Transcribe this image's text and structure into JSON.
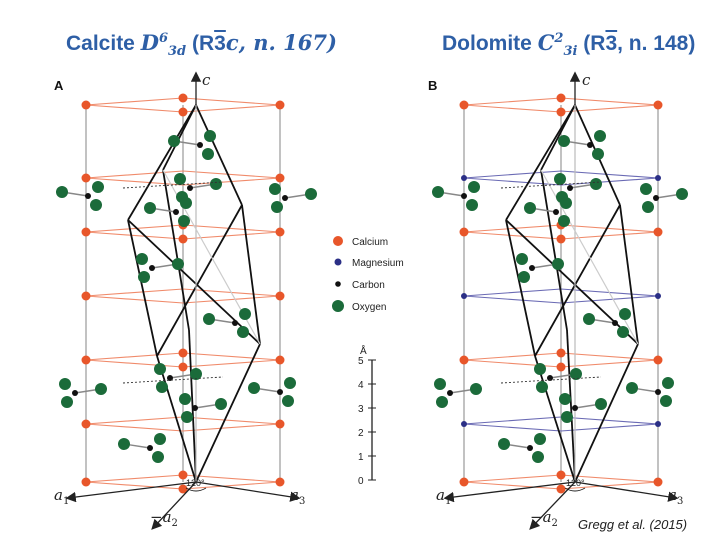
{
  "titles": {
    "calcite": {
      "mineral": "Calcite",
      "symbol": "D",
      "sup": "6",
      "sub": "3d",
      "group_pre": "(R",
      "group_bar": "3",
      "group_post": "c, n. 167)"
    },
    "dolomite": {
      "mineral": "Dolomite",
      "symbol": "C",
      "sup": "2",
      "sub": "3i",
      "group_pre": "(R",
      "group_bar": "3",
      "group_post": ", n. 148)"
    }
  },
  "panels": {
    "a": "A",
    "b": "B"
  },
  "axes": {
    "c": "c",
    "a": "a",
    "a1": "1",
    "a2": "2",
    "a3": "3",
    "minus": "−",
    "angle": "120°"
  },
  "legend": [
    {
      "label": "Calcium",
      "color": "#e8562a"
    },
    {
      "label": "Magnesium",
      "color": "#2b2f86"
    },
    {
      "label": "Carbon",
      "color": "#111111"
    },
    {
      "label": "Oxygen",
      "color": "#1b6b3a"
    }
  ],
  "scale": {
    "unit": "Å",
    "ticks": [
      "0",
      "1",
      "2",
      "3",
      "4",
      "5"
    ]
  },
  "colors": {
    "calcium_plane": "#f08a6a",
    "magnesium_plane": "#6a6ab4",
    "cell_edge": "#111111"
  },
  "citation": "Gregg et al. (2015)"
}
